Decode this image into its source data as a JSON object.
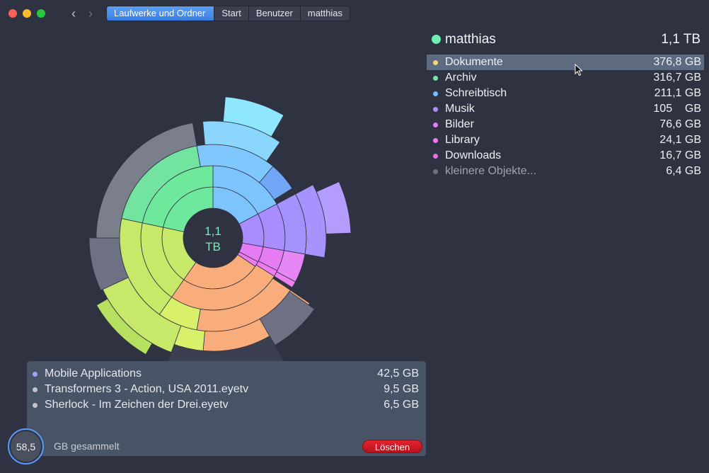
{
  "breadcrumb": {
    "items": [
      "Laufwerke und Ordner",
      "Start",
      "Benutzer",
      "matthias"
    ]
  },
  "root": {
    "name": "matthias",
    "size": "1,1 TB",
    "color": "#6ef0b6"
  },
  "folders": [
    {
      "name": "Dokumente",
      "size": "376,8 GB",
      "color": "#f4d57a",
      "selected": true
    },
    {
      "name": "Archiv",
      "size": "316,7 GB",
      "color": "#6ee89c"
    },
    {
      "name": "Schreibtisch",
      "size": "211,1 GB",
      "color": "#6cc2ff"
    },
    {
      "name": "Musik",
      "size": "105    GB",
      "color": "#a98cff"
    },
    {
      "name": "Bilder",
      "size": "76,6 GB",
      "color": "#e57cf4"
    },
    {
      "name": "Library",
      "size": "24,1 GB",
      "color": "#f07af0"
    },
    {
      "name": "Downloads",
      "size": "16,7 GB",
      "color": "#e96fe8"
    },
    {
      "name": "kleinere Objekte...",
      "size": "6,4 GB",
      "color": "#6d7183"
    }
  ],
  "center": {
    "line1": "1,1",
    "line2": "TB"
  },
  "collection": {
    "items": [
      {
        "name": "Mobile Applications",
        "size": "42,5 GB",
        "color": "#a7a8ff"
      },
      {
        "name": "Transformers 3 - Action, USA 2011.eyetv",
        "size": "9,5 GB",
        "color": "#c8cacf"
      },
      {
        "name": "Sherlock - Im Zeichen der Drei.eyetv",
        "size": "6,5 GB",
        "color": "#c8cacf"
      }
    ],
    "total": "58,5",
    "total_label": "GB gesammelt",
    "delete_label": "Löschen"
  }
}
